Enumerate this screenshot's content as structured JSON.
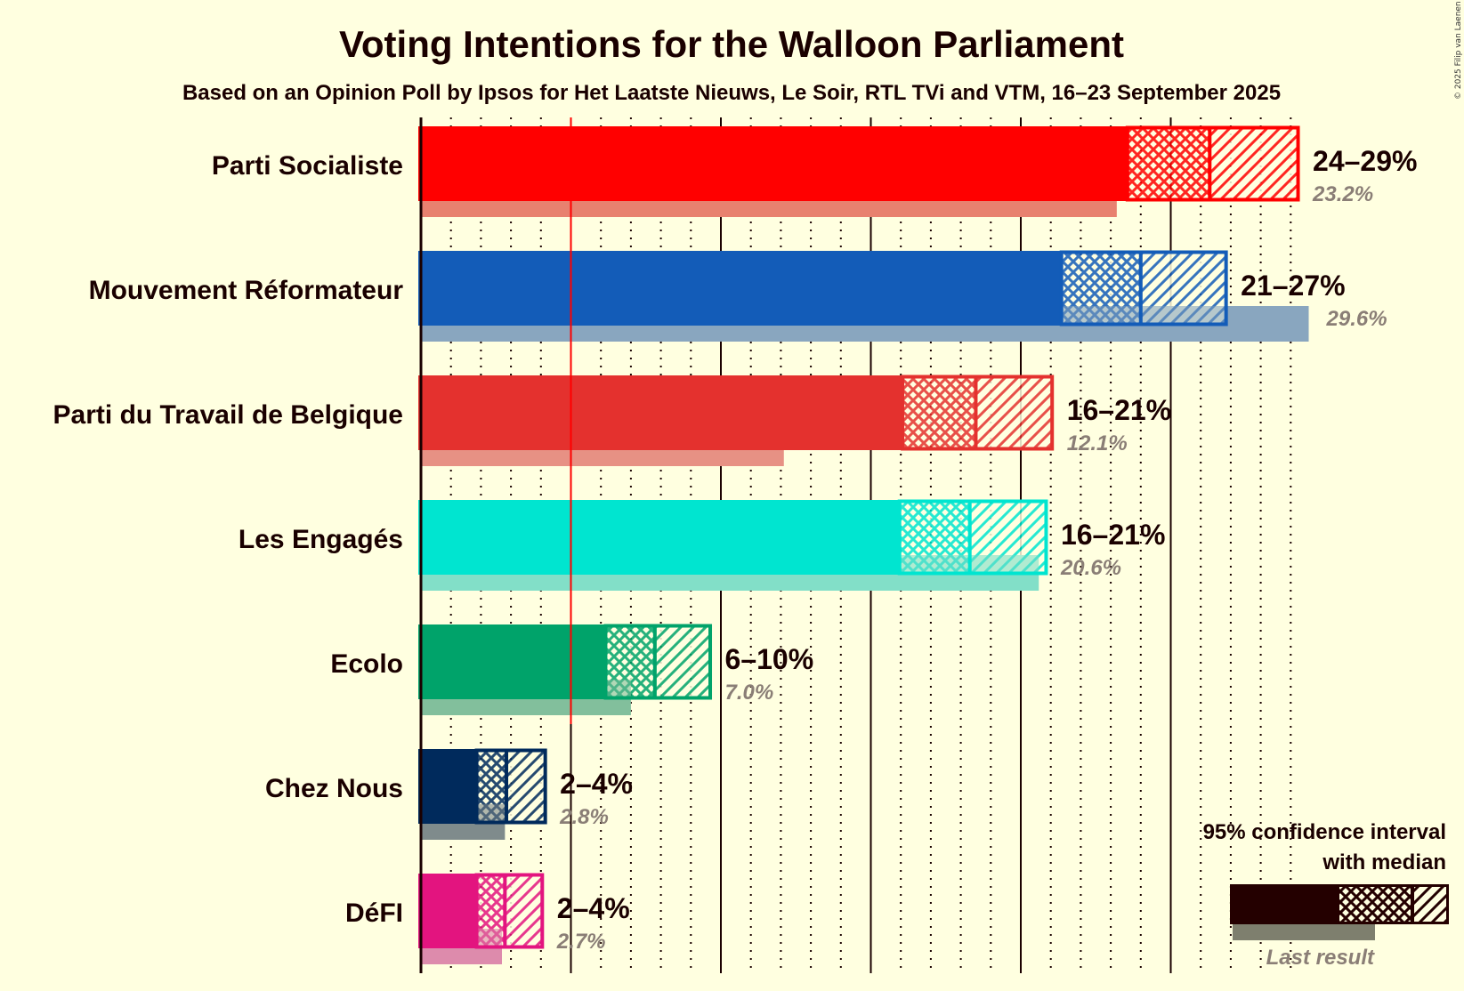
{
  "copyright": "© 2025 Filip van Laenen",
  "chart_data": {
    "type": "bar",
    "orientation": "horizontal",
    "title": "Voting Intentions for the Walloon Parliament",
    "subtitle": "Based on an Opinion Poll by Ipsos for Het Laatste Nieuws, Le Soir, RTL TVi and VTM, 16–23 September 2025",
    "xlim": [
      0,
      30
    ],
    "major_gridlines": [
      0,
      5,
      10,
      15,
      20,
      25
    ],
    "minor_grid_step": 1,
    "threshold": 5,
    "colors": {
      "text": "#1a0000",
      "last_label": "#8a7e76",
      "threshold": "#ff0000",
      "background": "#ffffe0"
    },
    "parties": [
      {
        "name": "Parti Socialiste",
        "range_label": "24–29%",
        "last_label": "23.2%",
        "ci_low": 23.6,
        "median": 26.3,
        "ci_high": 29.2,
        "last": 23.2,
        "color": "#ff0000",
        "last_color": "#e8816f"
      },
      {
        "name": "Mouvement Réformateur",
        "range_label": "21–27%",
        "last_label": "29.6%",
        "ci_low": 21.4,
        "median": 24.0,
        "ci_high": 26.8,
        "last": 29.6,
        "color": "#135cb8",
        "last_color": "#89a6bf"
      },
      {
        "name": "Parti du Travail de Belgique",
        "range_label": "16–21%",
        "last_label": "12.1%",
        "ci_low": 16.1,
        "median": 18.5,
        "ci_high": 21.0,
        "last": 12.1,
        "color": "#e4312e",
        "last_color": "#e79184"
      },
      {
        "name": "Les Engagés",
        "range_label": "16–21%",
        "last_label": "20.6%",
        "ci_low": 16.0,
        "median": 18.3,
        "ci_high": 20.8,
        "last": 20.6,
        "color": "#00e5d0",
        "last_color": "#82dfc8"
      },
      {
        "name": "Ecolo",
        "range_label": "6–10%",
        "last_label": "7.0%",
        "ci_low": 6.2,
        "median": 7.8,
        "ci_high": 9.6,
        "last": 7.0,
        "color": "#00a36a",
        "last_color": "#82bf9c"
      },
      {
        "name": "Chez Nous",
        "range_label": "2–4%",
        "last_label": "2.8%",
        "ci_low": 1.9,
        "median": 2.85,
        "ci_high": 4.1,
        "last": 2.8,
        "color": "#002a5c",
        "last_color": "#7f8b8c"
      },
      {
        "name": "DéFI",
        "range_label": "2–4%",
        "last_label": "2.7%",
        "ci_low": 1.9,
        "median": 2.8,
        "ci_high": 4.0,
        "last": 2.7,
        "color": "#e3147f",
        "last_color": "#dd8bac"
      }
    ],
    "legend": {
      "line1": "95% confidence interval",
      "line2": "with median",
      "last_result": "Last result",
      "color": "#240000",
      "last_color": "#7e7f6e"
    }
  }
}
